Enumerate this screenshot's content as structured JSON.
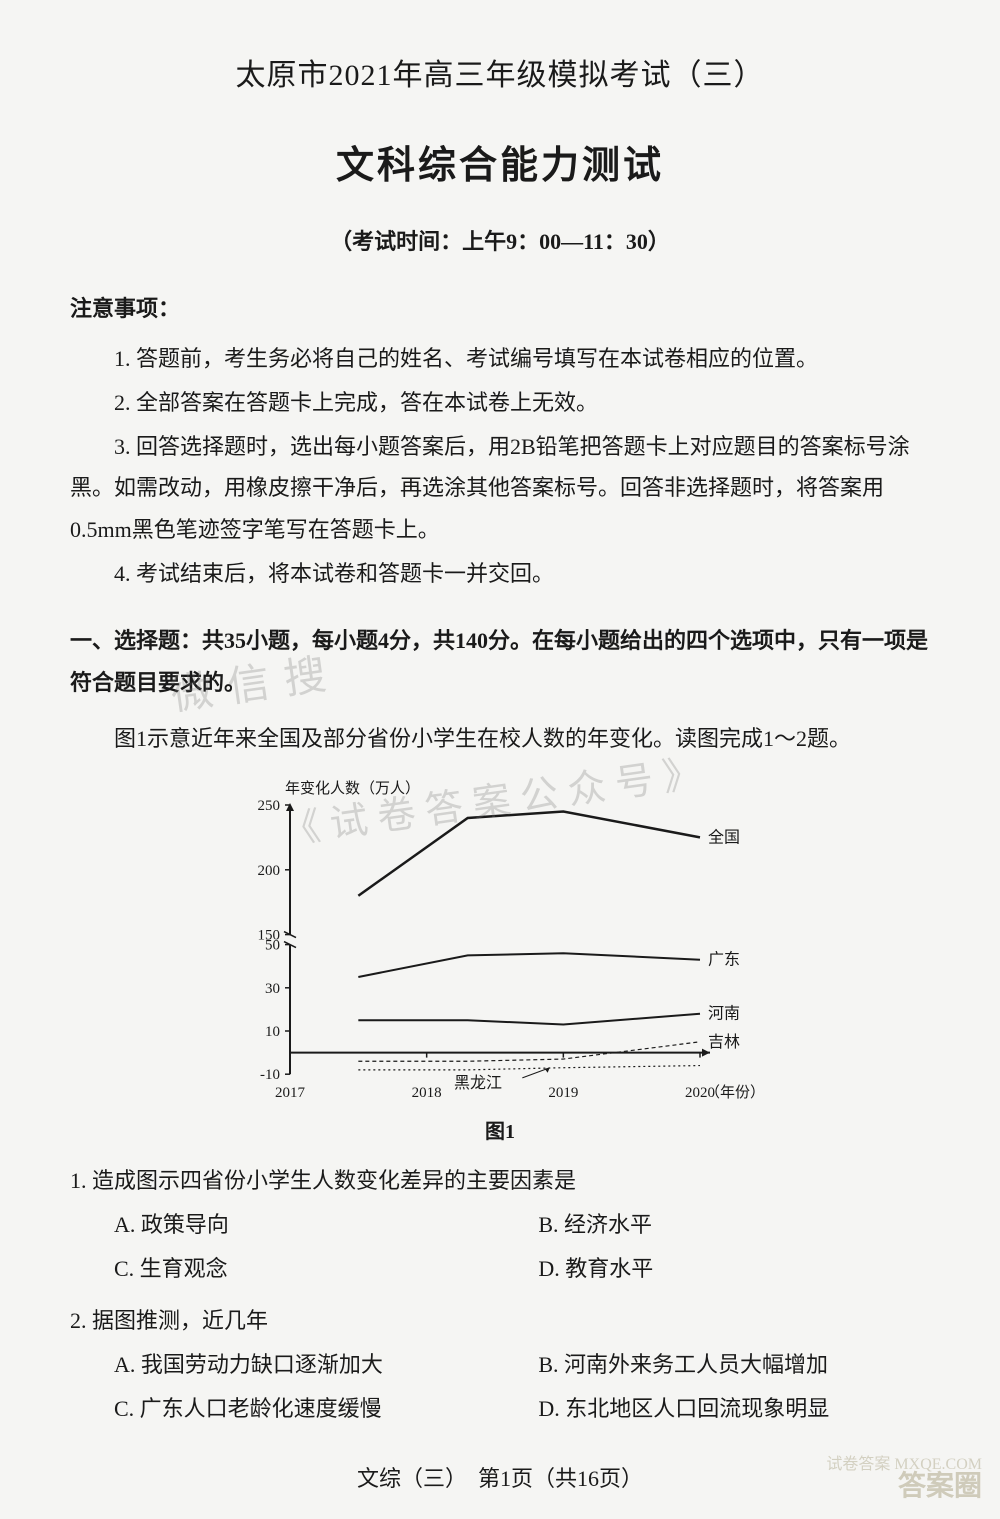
{
  "header": {
    "main_title": "太原市2021年高三年级模拟考试（三）",
    "sub_title": "文科综合能力测试",
    "exam_time": "（考试时间：上午9：00—11：30）"
  },
  "notice": {
    "title": "注意事项：",
    "items": [
      "1. 答题前，考生务必将自己的姓名、考试编号填写在本试卷相应的位置。",
      "2. 全部答案在答题卡上完成，答在本试卷上无效。",
      "3. 回答选择题时，选出每小题答案后，用2B铅笔把答题卡上对应题目的答案标号涂黑。如需改动，用橡皮擦干净后，再选涂其他答案标号。回答非选择题时，将答案用0.5mm黑色笔迹签字笔写在答题卡上。",
      "4. 考试结束后，将本试卷和答题卡一并交回。"
    ]
  },
  "section1": {
    "title": "一、选择题：共35小题，每小题4分，共140分。在每小题给出的四个选项中，只有一项是符合题目要求的。",
    "figure_intro": "图1示意近年来全国及部分省份小学生在校人数的年变化。读图完成1～2题。"
  },
  "chart": {
    "type": "line",
    "y_axis_label": "年变化人数（万人）",
    "x_axis_label": "（年份）",
    "caption": "图1",
    "x_categories": [
      "2017",
      "2018",
      "2019",
      "2020"
    ],
    "y_ticks": [
      -10,
      10,
      30,
      50,
      150,
      200,
      250
    ],
    "y_break_between": [
      50,
      150
    ],
    "series": [
      {
        "name": "全国",
        "color": "#1a1a1a",
        "width": 2.5,
        "dash": "none",
        "points": [
          [
            2017.5,
            180
          ],
          [
            2018.3,
            240
          ],
          [
            2019,
            245
          ],
          [
            2020,
            225
          ]
        ]
      },
      {
        "name": "广东",
        "color": "#1a1a1a",
        "width": 2,
        "dash": "none",
        "points": [
          [
            2017.5,
            35
          ],
          [
            2018.3,
            45
          ],
          [
            2019,
            46
          ],
          [
            2020,
            43
          ]
        ]
      },
      {
        "name": "河南",
        "color": "#1a1a1a",
        "width": 2,
        "dash": "none",
        "points": [
          [
            2017.5,
            15
          ],
          [
            2018.3,
            15
          ],
          [
            2019,
            13
          ],
          [
            2020,
            18
          ]
        ]
      },
      {
        "name": "吉林",
        "color": "#1a1a1a",
        "width": 1.2,
        "dash": "4,3",
        "points": [
          [
            2017.5,
            -4
          ],
          [
            2018.3,
            -4
          ],
          [
            2019,
            -3
          ],
          [
            2020,
            5
          ]
        ]
      },
      {
        "name": "黑龙江",
        "color": "#1a1a1a",
        "width": 1.2,
        "dash": "2,3",
        "points": [
          [
            2017.5,
            -8
          ],
          [
            2018.3,
            -8
          ],
          [
            2019,
            -7
          ],
          [
            2020,
            -6
          ]
        ]
      }
    ],
    "background_color": "#f5f5f3",
    "axis_color": "#1a1a1a",
    "label_fontsize": 15,
    "tick_fontsize": 15,
    "series_label_fontsize": 16
  },
  "questions": [
    {
      "stem": "1. 造成图示四省份小学生人数变化差异的主要因素是",
      "opts": [
        {
          "a": "A. 政策导向",
          "b": "B. 经济水平"
        },
        {
          "a": "C. 生育观念",
          "b": "D. 教育水平"
        }
      ]
    },
    {
      "stem": "2. 据图推测，近几年",
      "opts": [
        {
          "a": "A. 我国劳动力缺口逐渐加大",
          "b": "B. 河南外来务工人员大幅增加"
        },
        {
          "a": "C. 广东人口老龄化速度缓慢",
          "b": "D. 东北地区人口回流现象明显"
        }
      ]
    }
  ],
  "footer": "文综（三）　第1页（共16页）",
  "watermarks": {
    "w1": "微信搜",
    "w2": "《试卷答案公众号》",
    "corner": "答案圈",
    "corner_sub": "试卷答案  MXQE.COM"
  }
}
